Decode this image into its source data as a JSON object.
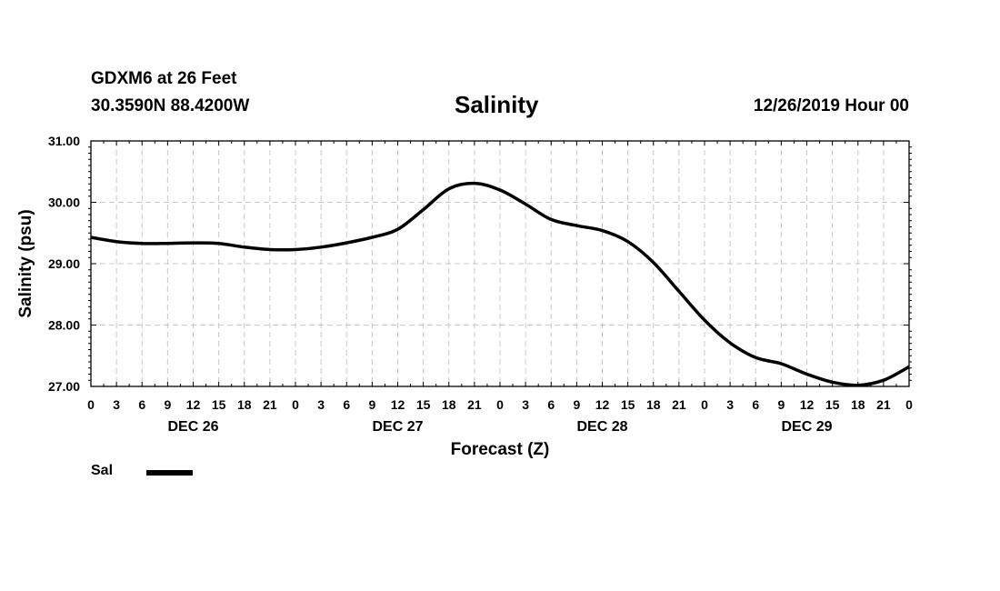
{
  "header": {
    "station": "GDXM6 at 26 Feet",
    "coords": "30.3590N 88.4200W",
    "timestamp": "12/26/2019 Hour 00"
  },
  "legend": {
    "label": "Sal",
    "color": "#000000"
  },
  "chart_data": {
    "type": "line",
    "title": "Salinity",
    "xlabel": "Forecast (Z)",
    "ylabel": "Salinity (psu)",
    "ylim": [
      27.0,
      31.0
    ],
    "yticks": [
      "27.00",
      "28.00",
      "29.00",
      "30.00",
      "31.00"
    ],
    "xlim_hours": [
      0,
      96
    ],
    "xticks": [
      "0",
      "3",
      "6",
      "9",
      "12",
      "15",
      "18",
      "21",
      "0",
      "3",
      "6",
      "9",
      "12",
      "15",
      "18",
      "21",
      "0",
      "3",
      "6",
      "9",
      "12",
      "15",
      "18",
      "21",
      "0",
      "3",
      "6",
      "9",
      "12",
      "15",
      "18",
      "21",
      "0"
    ],
    "day_labels": [
      {
        "label": "DEC 26",
        "center_hour": 12
      },
      {
        "label": "DEC 27",
        "center_hour": 36
      },
      {
        "label": "DEC 28",
        "center_hour": 60
      },
      {
        "label": "DEC 29",
        "center_hour": 84
      }
    ],
    "grid": true,
    "series": [
      {
        "name": "Sal",
        "hours": [
          0,
          3,
          6,
          9,
          12,
          15,
          18,
          21,
          24,
          27,
          30,
          33,
          36,
          39,
          42,
          45,
          48,
          51,
          54,
          57,
          60,
          63,
          66,
          69,
          72,
          75,
          78,
          81,
          84,
          87,
          90,
          93,
          96
        ],
        "values": [
          29.43,
          29.36,
          29.33,
          29.33,
          29.34,
          29.33,
          29.27,
          29.23,
          29.23,
          29.27,
          29.34,
          29.43,
          29.56,
          29.88,
          30.22,
          30.31,
          30.2,
          29.97,
          29.72,
          29.62,
          29.54,
          29.36,
          29.02,
          28.55,
          28.08,
          27.71,
          27.47,
          27.37,
          27.2,
          27.07,
          27.02,
          27.1,
          27.32
        ]
      }
    ]
  }
}
